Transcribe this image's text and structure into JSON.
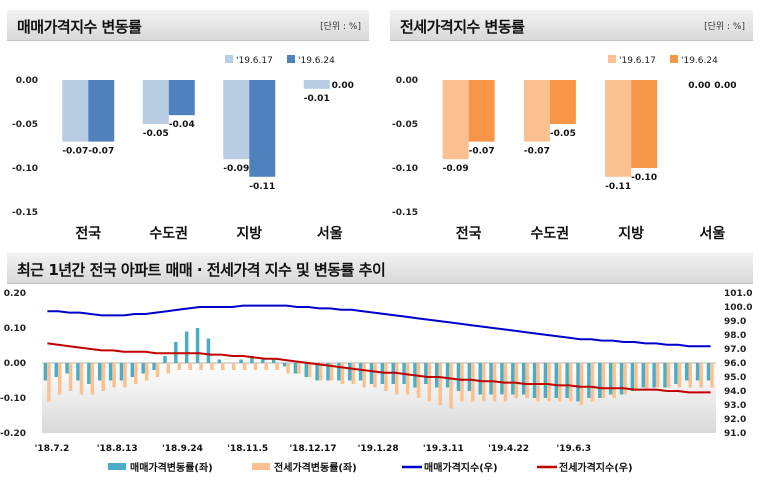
{
  "left_panel": {
    "title": "매매가격지수 변동률",
    "unit": "[단위 : %]"
  },
  "right_panel": {
    "title": "전세가격지수 변동률",
    "unit": "[단위 : %]"
  },
  "bottom_panel": {
    "title": "최근 1년간 전국 아파트 매매 · 전세가격 지수 및 변동률 추이"
  },
  "chart_data": [
    {
      "type": "bar",
      "categories": [
        "전국",
        "수도권",
        "지방",
        "서울"
      ],
      "series": [
        {
          "name": "'19.6.17",
          "values": [
            -0.07,
            -0.05,
            -0.09,
            -0.01
          ],
          "color": "#b8cce4"
        },
        {
          "name": "'19.6.24",
          "values": [
            -0.07,
            -0.04,
            -0.11,
            0.0
          ],
          "color": "#4f81bd"
        }
      ],
      "value_labels": [
        [
          "-0.07",
          "-0.05",
          "-0.09",
          "-0.01"
        ],
        [
          "-0.07",
          "-0.04",
          "-0.11",
          "0.00"
        ]
      ],
      "ylim": [
        -0.15,
        0.0
      ],
      "yticks": [
        "0.00",
        "-0.05",
        "-0.10",
        "-0.15"
      ]
    },
    {
      "type": "bar",
      "categories": [
        "전국",
        "수도권",
        "지방",
        "서울"
      ],
      "series": [
        {
          "name": "'19.6.17",
          "values": [
            -0.09,
            -0.07,
            -0.11,
            0.0
          ],
          "color": "#fac090"
        },
        {
          "name": "'19.6.24",
          "values": [
            -0.07,
            -0.05,
            -0.1,
            0.0
          ],
          "color": "#f79646"
        }
      ],
      "value_labels": [
        [
          "-0.09",
          "-0.07",
          "-0.11",
          "0.00"
        ],
        [
          "-0.07",
          "-0.05",
          "-0.10",
          "0.00"
        ]
      ],
      "ylim": [
        -0.15,
        0.0
      ],
      "yticks": [
        "0.00",
        "-0.05",
        "-0.10",
        "-0.15"
      ]
    },
    {
      "type": "bar+line",
      "x_ticks": [
        "'18.7.2",
        "'18.8.13",
        "'18.9.24",
        "'18.11.5",
        "'18.12.17",
        "'19.1.28",
        "'19.3.11",
        "'19.4.22",
        "'19.6.3"
      ],
      "left_ylim": [
        -0.2,
        0.2
      ],
      "left_yticks": [
        "0.20",
        "0.10",
        "0.00",
        "-0.10",
        "-0.20"
      ],
      "right_ylim": [
        91.0,
        101.0
      ],
      "right_yticks": [
        "101.0",
        "100.0",
        "99.0",
        "98.0",
        "97.0",
        "96.0",
        "95.0",
        "94.0",
        "93.0",
        "92.0",
        "91.0"
      ],
      "series": [
        {
          "name": "매매가격변동률(좌)",
          "axis": "left",
          "kind": "bar",
          "color": "#4bacc6",
          "values": [
            -0.05,
            -0.04,
            -0.03,
            -0.05,
            -0.06,
            -0.05,
            -0.05,
            -0.05,
            -0.04,
            -0.03,
            -0.02,
            0.02,
            0.06,
            0.09,
            0.1,
            0.07,
            0.01,
            0.0,
            0.01,
            0.02,
            0.01,
            0.01,
            -0.01,
            -0.03,
            -0.04,
            -0.05,
            -0.05,
            -0.05,
            -0.05,
            -0.05,
            -0.06,
            -0.06,
            -0.06,
            -0.06,
            -0.07,
            -0.06,
            -0.07,
            -0.07,
            -0.08,
            -0.08,
            -0.09,
            -0.09,
            -0.09,
            -0.09,
            -0.09,
            -0.1,
            -0.1,
            -0.1,
            -0.1,
            -0.11,
            -0.1,
            -0.1,
            -0.09,
            -0.09,
            -0.08,
            -0.07,
            -0.07,
            -0.07,
            -0.06,
            -0.05,
            -0.05,
            -0.05
          ]
        },
        {
          "name": "전세가격변동률(좌)",
          "axis": "left",
          "kind": "bar",
          "color": "#fac090",
          "values": [
            -0.11,
            -0.09,
            -0.08,
            -0.09,
            -0.09,
            -0.08,
            -0.07,
            -0.07,
            -0.06,
            -0.05,
            -0.04,
            -0.03,
            -0.02,
            -0.02,
            -0.02,
            -0.02,
            -0.02,
            -0.02,
            -0.02,
            -0.02,
            -0.02,
            -0.02,
            -0.03,
            -0.03,
            -0.04,
            -0.05,
            -0.05,
            -0.06,
            -0.06,
            -0.07,
            -0.07,
            -0.08,
            -0.09,
            -0.09,
            -0.1,
            -0.11,
            -0.12,
            -0.13,
            -0.11,
            -0.11,
            -0.11,
            -0.11,
            -0.11,
            -0.1,
            -0.1,
            -0.11,
            -0.11,
            -0.11,
            -0.11,
            -0.12,
            -0.11,
            -0.1,
            -0.1,
            -0.09,
            -0.08,
            -0.08,
            -0.07,
            -0.07,
            -0.07,
            -0.07,
            -0.07,
            -0.07
          ]
        },
        {
          "name": "매매가격지수(우)",
          "axis": "right",
          "kind": "line",
          "color": "#0000cc",
          "values": [
            99.7,
            99.7,
            99.6,
            99.6,
            99.5,
            99.4,
            99.4,
            99.4,
            99.5,
            99.5,
            99.6,
            99.7,
            99.8,
            99.9,
            100.0,
            100.0,
            100.0,
            100.0,
            100.1,
            100.1,
            100.1,
            100.1,
            100.1,
            100.0,
            100.0,
            99.9,
            99.9,
            99.8,
            99.8,
            99.7,
            99.6,
            99.5,
            99.4,
            99.3,
            99.2,
            99.1,
            99.0,
            98.9,
            98.8,
            98.7,
            98.6,
            98.5,
            98.4,
            98.3,
            98.2,
            98.1,
            98.0,
            97.9,
            97.8,
            97.7,
            97.7,
            97.6,
            97.6,
            97.5,
            97.5,
            97.4,
            97.4,
            97.3,
            97.3,
            97.2,
            97.2,
            97.2
          ]
        },
        {
          "name": "전세가격지수(우)",
          "axis": "right",
          "kind": "line",
          "color": "#c00000",
          "values": [
            97.4,
            97.3,
            97.2,
            97.1,
            97.0,
            96.9,
            96.9,
            96.8,
            96.8,
            96.8,
            96.7,
            96.7,
            96.7,
            96.7,
            96.7,
            96.6,
            96.6,
            96.5,
            96.5,
            96.4,
            96.3,
            96.3,
            96.2,
            96.1,
            96.0,
            95.9,
            95.8,
            95.7,
            95.6,
            95.5,
            95.4,
            95.3,
            95.3,
            95.2,
            95.1,
            95.0,
            95.0,
            94.9,
            94.8,
            94.8,
            94.7,
            94.7,
            94.6,
            94.6,
            94.5,
            94.5,
            94.5,
            94.4,
            94.4,
            94.3,
            94.3,
            94.2,
            94.2,
            94.2,
            94.1,
            94.1,
            94.1,
            94.0,
            94.0,
            93.9,
            93.9,
            93.9
          ]
        }
      ]
    }
  ]
}
